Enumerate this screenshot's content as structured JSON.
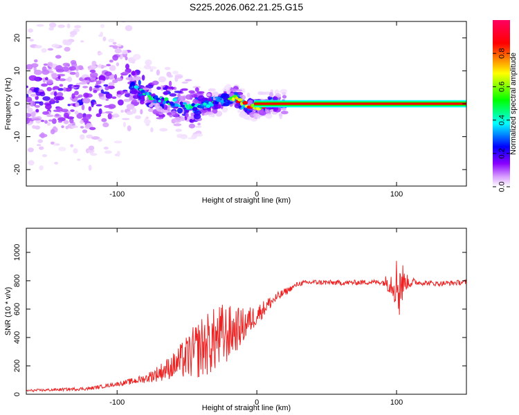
{
  "chart_data": [
    {
      "type": "heatmap",
      "title": "S225.2026.062.21.25.G15",
      "xlabel": "Height of straight line (km)",
      "ylabel": "Frequency (Hz)",
      "xlim": [
        -165,
        150
      ],
      "ylim": [
        -25,
        25
      ],
      "x_ticks": [
        -100,
        0,
        100
      ],
      "y_ticks": [
        -20,
        -10,
        0,
        10,
        20
      ],
      "colorbar": {
        "label": "Normalized spectral amplitude",
        "range": [
          0,
          1
        ],
        "ticks": [
          0.0,
          0.2,
          0.4,
          0.6,
          0.8
        ],
        "stops": [
          "#ffffff",
          "#d9a0ff",
          "#8800ff",
          "#0000ff",
          "#00ffff",
          "#00ff00",
          "#ffff00",
          "#ff0000",
          "#ff0060"
        ]
      },
      "ridge": {
        "x": [
          -165,
          -140,
          -120,
          -105,
          -95,
          -85,
          -75,
          -65,
          -55,
          -45,
          -35,
          -25,
          -15,
          -10,
          -5,
          0,
          10,
          20,
          40,
          60,
          80,
          100,
          150
        ],
        "y": [
          2,
          3,
          1,
          4,
          6,
          5,
          2,
          1,
          0,
          -1,
          0,
          1,
          2,
          0,
          -1,
          -1,
          0,
          0,
          0,
          0,
          0,
          0,
          0
        ]
      }
    },
    {
      "type": "line",
      "title": "",
      "xlabel": "Height of straight line (km)",
      "ylabel": "SNR (10 * v/v)",
      "xlim": [
        -165,
        150
      ],
      "ylim": [
        0,
        1170
      ],
      "x_ticks": [
        -100,
        0,
        100
      ],
      "y_ticks": [
        0,
        200,
        400,
        600,
        800,
        1000
      ],
      "color": "#ee2222",
      "envelope": {
        "x": [
          -165,
          -120,
          -95,
          -80,
          -70,
          -60,
          -50,
          -40,
          -30,
          -20,
          -10,
          0,
          10,
          20,
          30,
          40,
          60,
          80,
          95,
          100,
          105,
          110,
          130,
          150
        ],
        "y": [
          25,
          40,
          80,
          110,
          150,
          200,
          260,
          330,
          380,
          430,
          480,
          560,
          650,
          720,
          780,
          790,
          785,
          790,
          790,
          780,
          790,
          790,
          780,
          790
        ]
      },
      "noise_amplitude": {
        "x": [
          -165,
          -100,
          -80,
          -60,
          -40,
          -25,
          -15,
          0,
          15,
          25,
          90,
          98,
          102,
          106,
          115,
          150
        ],
        "y": [
          8,
          14,
          30,
          90,
          220,
          240,
          160,
          70,
          35,
          18,
          18,
          120,
          280,
          60,
          18,
          18
        ]
      }
    }
  ]
}
